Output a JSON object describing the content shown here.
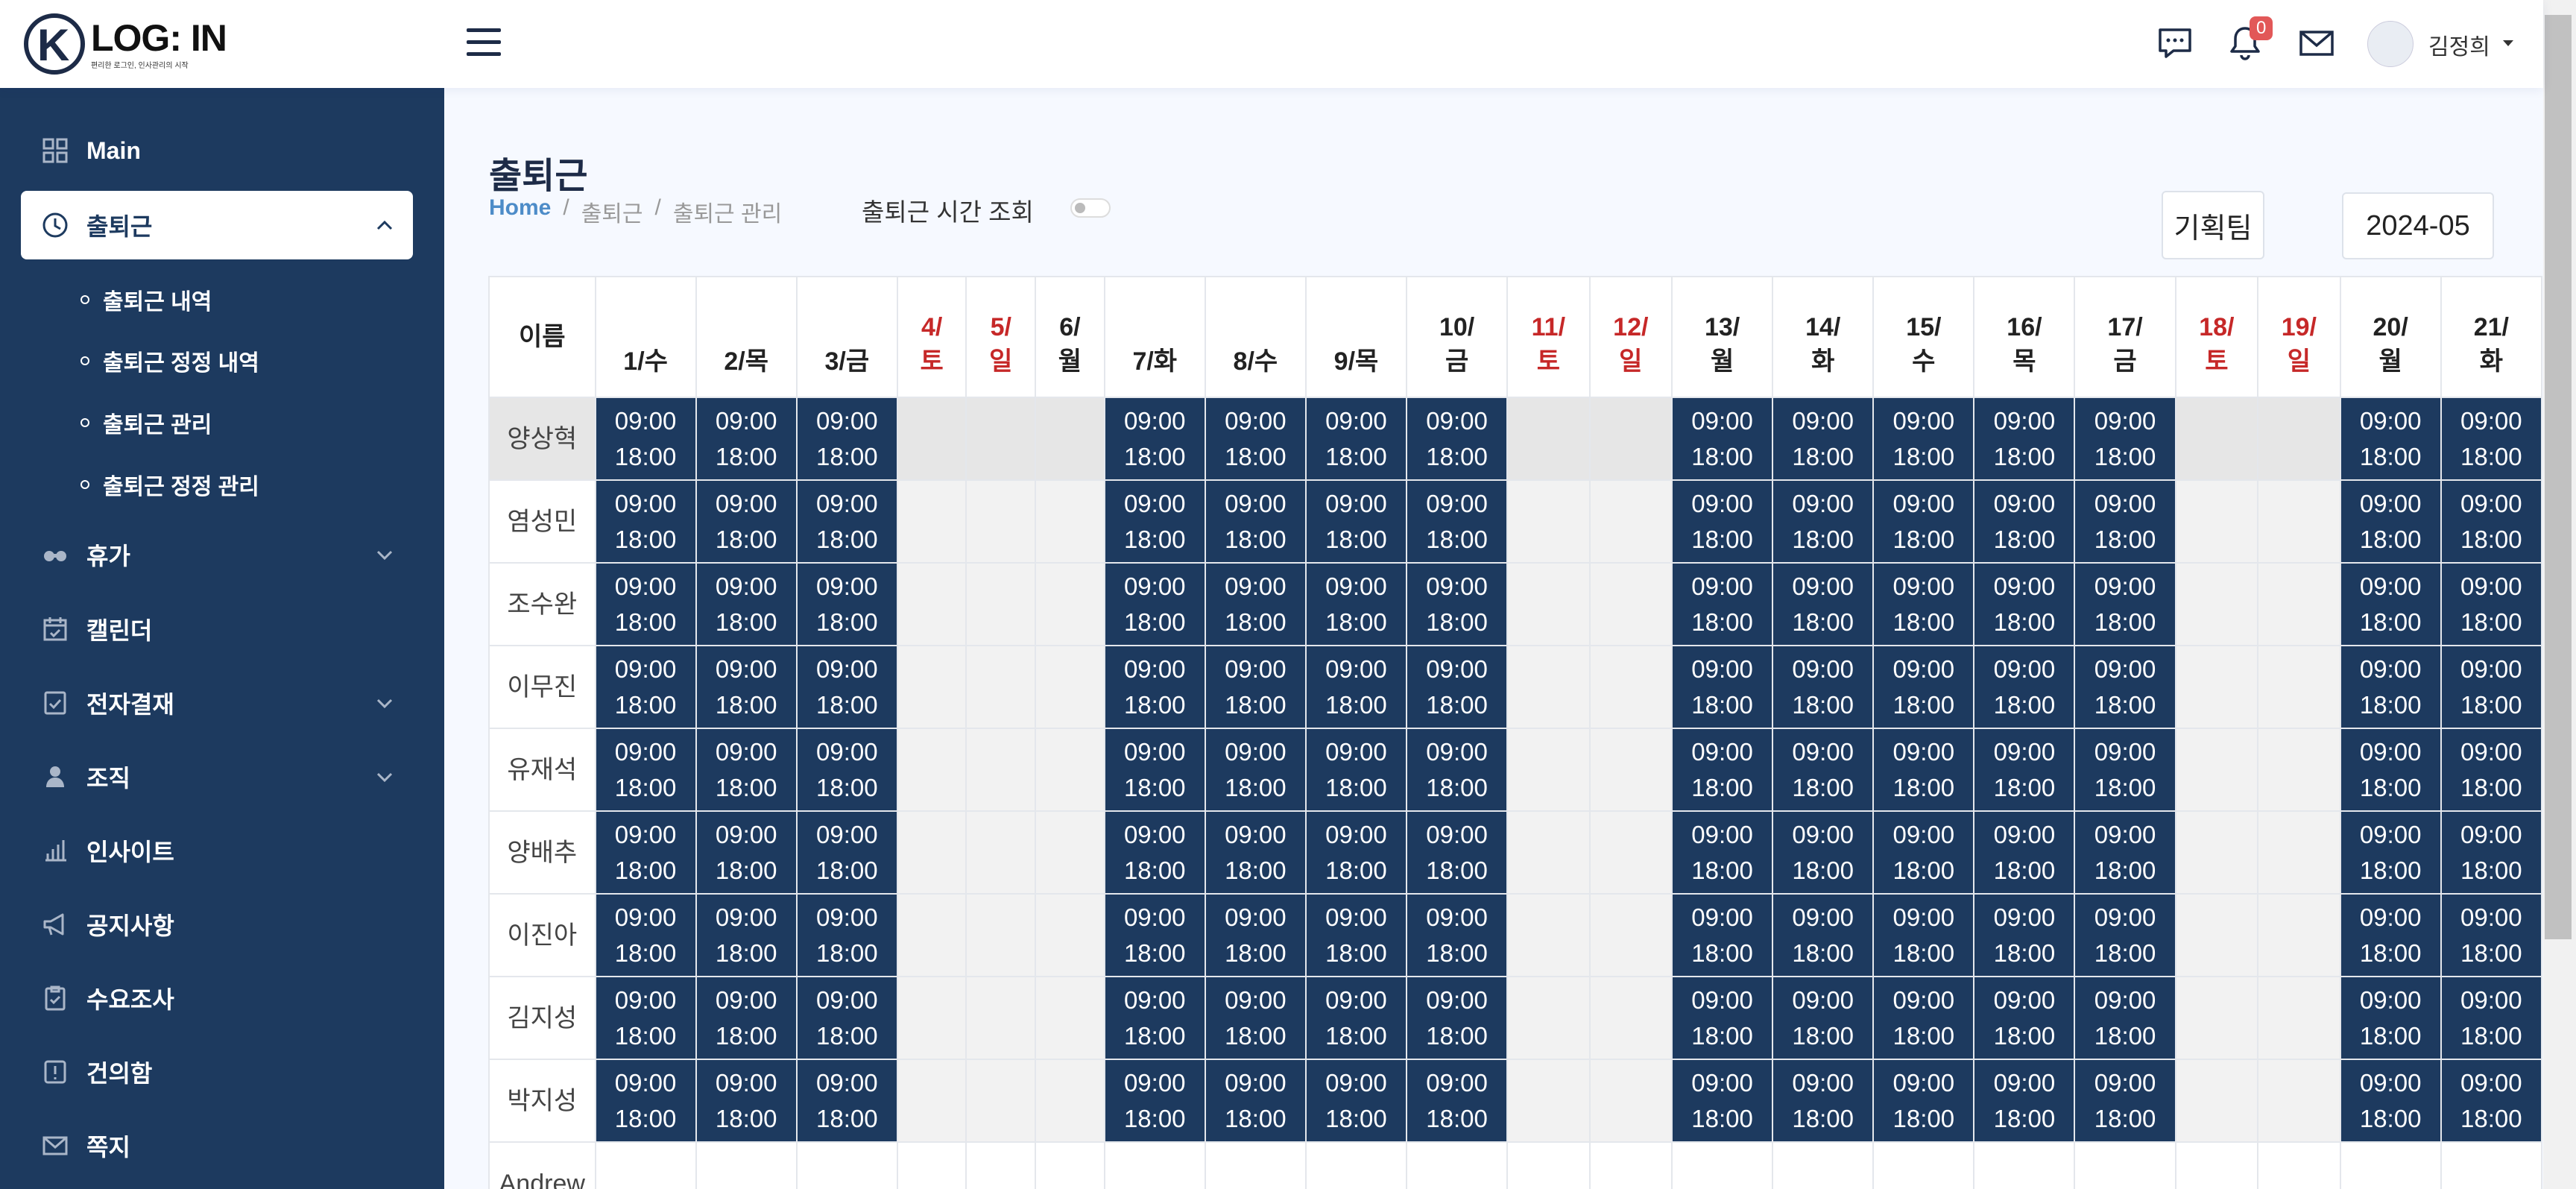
{
  "app": {
    "logo_title": "LOG: IN",
    "logo_sub": "편리한 로그인, 인사관리의 시작",
    "logo_letter": "K"
  },
  "header": {
    "notification_count": "0",
    "user_name": "김정희",
    "icons": [
      "chat-icon",
      "bell-icon",
      "mail-icon"
    ]
  },
  "sidebar": {
    "items": [
      {
        "label": "Main",
        "icon": "grid-icon"
      },
      {
        "label": "출퇴근",
        "icon": "clock-icon",
        "expanded": true
      },
      {
        "label": "휴가",
        "icon": "vacation-icon"
      },
      {
        "label": "캘린더",
        "icon": "calendar-icon"
      },
      {
        "label": "전자결재",
        "icon": "approval-icon"
      },
      {
        "label": "조직",
        "icon": "org-icon"
      },
      {
        "label": "인사이트",
        "icon": "chart-icon"
      },
      {
        "label": "공지사항",
        "icon": "megaphone-icon"
      },
      {
        "label": "수요조사",
        "icon": "survey-icon"
      },
      {
        "label": "건의함",
        "icon": "suggestion-icon"
      },
      {
        "label": "쪽지",
        "icon": "envelope-icon"
      }
    ],
    "sub_items": [
      "출퇴근 내역",
      "출퇴근 정정 내역",
      "출퇴근 관리",
      "출퇴근 정정 관리"
    ]
  },
  "page": {
    "title": "출퇴근",
    "breadcrumb": [
      "Home",
      "출퇴근",
      "출퇴근 관리"
    ],
    "breadcrumb_sep": "/",
    "toggle_label": "출퇴근 시간 조회",
    "team": "기획팀",
    "month": "2024-05"
  },
  "table": {
    "name_header": "이름",
    "days": [
      {
        "l1": "",
        "l2": "1/수",
        "weekend": false,
        "work": true
      },
      {
        "l1": "",
        "l2": "2/목",
        "weekend": false,
        "work": true
      },
      {
        "l1": "",
        "l2": "3/금",
        "weekend": false,
        "work": true
      },
      {
        "l1": "4/",
        "l2": "토",
        "weekend": true,
        "work": false
      },
      {
        "l1": "5/",
        "l2": "일",
        "weekend": true,
        "work": false
      },
      {
        "l1": "6/",
        "l2": "월",
        "weekend": false,
        "work": false
      },
      {
        "l1": "",
        "l2": "7/화",
        "weekend": false,
        "work": true
      },
      {
        "l1": "",
        "l2": "8/수",
        "weekend": false,
        "work": true
      },
      {
        "l1": "",
        "l2": "9/목",
        "weekend": false,
        "work": true
      },
      {
        "l1": "10/",
        "l2": "금",
        "weekend": false,
        "work": true
      },
      {
        "l1": "11/",
        "l2": "토",
        "weekend": true,
        "work": false
      },
      {
        "l1": "12/",
        "l2": "일",
        "weekend": true,
        "work": false
      },
      {
        "l1": "13/",
        "l2": "월",
        "weekend": false,
        "work": true
      },
      {
        "l1": "14/",
        "l2": "화",
        "weekend": false,
        "work": true
      },
      {
        "l1": "15/",
        "l2": "수",
        "weekend": false,
        "work": true
      },
      {
        "l1": "16/",
        "l2": "목",
        "weekend": false,
        "work": true
      },
      {
        "l1": "17/",
        "l2": "금",
        "weekend": false,
        "work": true
      },
      {
        "l1": "18/",
        "l2": "토",
        "weekend": true,
        "work": false
      },
      {
        "l1": "19/",
        "l2": "일",
        "weekend": true,
        "work": false
      },
      {
        "l1": "20/",
        "l2": "월",
        "weekend": false,
        "work": true
      },
      {
        "l1": "21/",
        "l2": "화",
        "weekend": false,
        "work": true
      }
    ],
    "start_time": "09:00",
    "end_time": "18:00",
    "employees": [
      "양상혁",
      "염성민",
      "조수완",
      "이무진",
      "유재석",
      "양배추",
      "이진아",
      "김지성",
      "박지성",
      "Andrew"
    ],
    "highlighted_row": 0,
    "empty_row": 9
  },
  "colors": {
    "sidebar_bg": "#1d3a5f",
    "work_cell": "#1d3a5f",
    "weekend_text": "#c62828",
    "link": "#4d8cc8"
  }
}
